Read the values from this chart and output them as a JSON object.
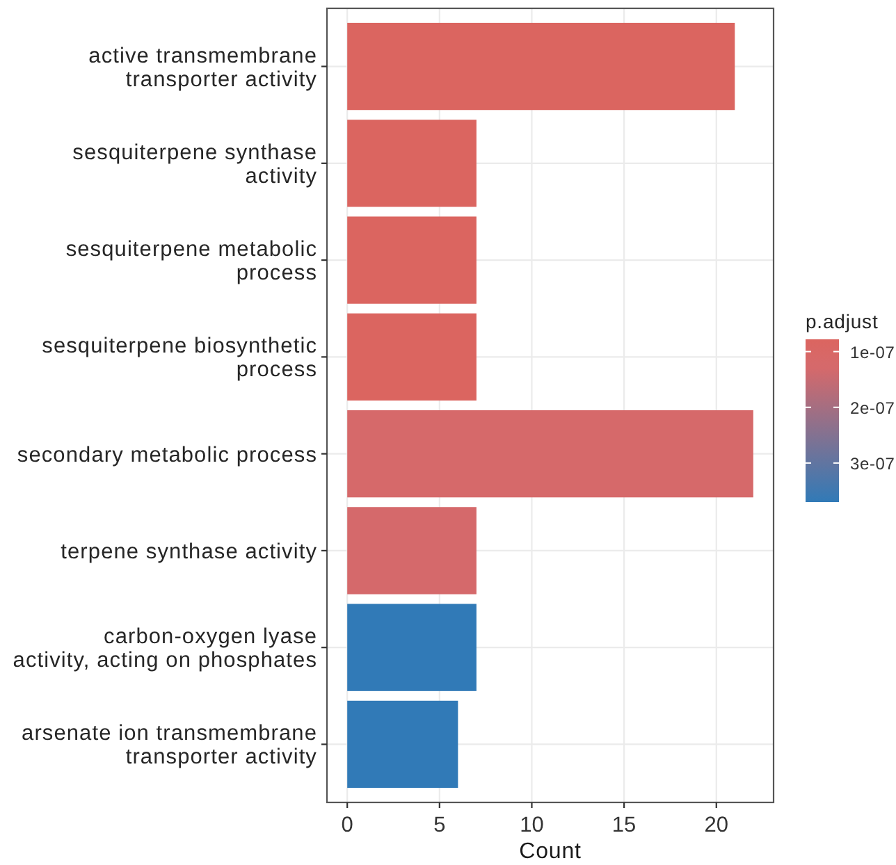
{
  "chart_data": {
    "type": "bar",
    "orientation": "horizontal",
    "categories": [
      "active transmembrane\ntransporter activity",
      "sesquiterpene synthase\nactivity",
      "sesquiterpene metabolic\nprocess",
      "sesquiterpene biosynthetic\nprocess",
      "secondary metabolic process",
      "terpene synthase activity",
      "carbon-oxygen lyase\nactivity, acting on phosphates",
      "arsenate ion transmembrane\ntransporter activity"
    ],
    "values": [
      21,
      7,
      7,
      7,
      22,
      7,
      7,
      6
    ],
    "colors": [
      "#db6560",
      "#db6560",
      "#db6560",
      "#db6560",
      "#d6696a",
      "#d5696b",
      "#317ab7",
      "#317ab7"
    ],
    "cvalues": [
      8e-08,
      8e-08,
      8e-08,
      8e-08,
      1.2e-07,
      1.3e-07,
      3.7e-07,
      3.7e-07
    ],
    "xlim": [
      -1.1,
      23.1
    ],
    "xticks": [
      0,
      5,
      10,
      15,
      20
    ],
    "xlabel": "Count",
    "clabel": "p.adjust",
    "clim": [
      7.8e-08,
      3.7e-07
    ],
    "cticks": [
      {
        "value": 1e-07,
        "label": "1e-07"
      },
      {
        "value": 2e-07,
        "label": "2e-07"
      },
      {
        "value": 3e-07,
        "label": "3e-07"
      }
    ],
    "grid": true
  }
}
